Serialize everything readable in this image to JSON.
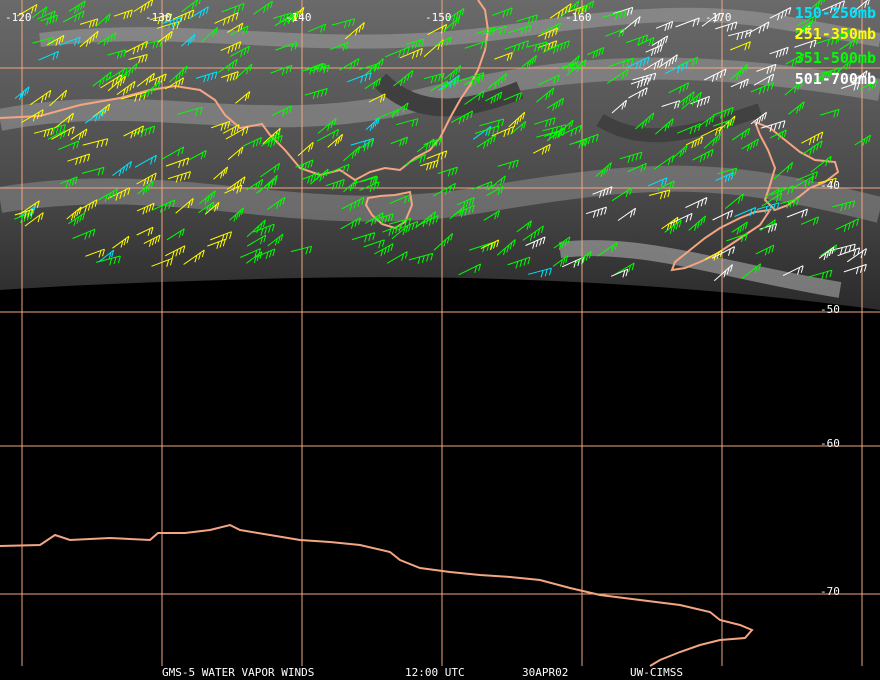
{
  "map": {
    "longitude_labels": [
      "-120",
      "-130",
      "-140",
      "-150",
      "-160",
      "-170"
    ],
    "latitude_labels": [
      "-40",
      "-50",
      "-60",
      "-70"
    ],
    "colors": {
      "grid": "#f0a880",
      "coast": "#f4a582",
      "background": "#000000"
    }
  },
  "legend": [
    {
      "label": "150-250mb",
      "color": "#00e5ff"
    },
    {
      "label": "251-350mb",
      "color": "#ffff00"
    },
    {
      "label": "351-500mb",
      "color": "#00ff00"
    },
    {
      "label": "501-700mb",
      "color": "#ffffff"
    }
  ],
  "footer": {
    "product": "GMS-5 WATER VAPOR WINDS",
    "time": "12:00 UTC",
    "date": "30APR02",
    "source": "UW-CIMSS"
  }
}
